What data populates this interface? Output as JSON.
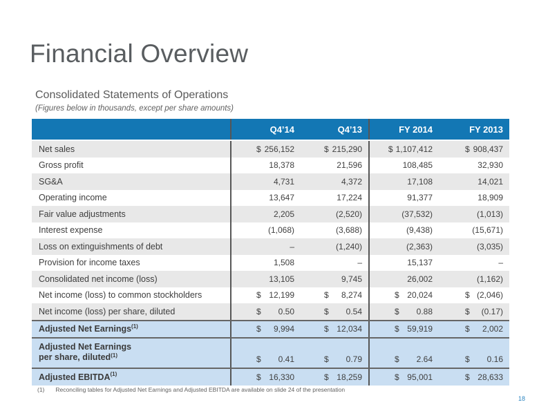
{
  "slide": {
    "title": "Financial Overview",
    "subtitle": "Consolidated Statements of Operations",
    "note": "(Figures below in thousands, except per share amounts)",
    "footnote_marker": "(1)",
    "footnote_text": "Reconciling tables for Adjusted Net Earnings and Adjusted EBITDA are available on slide 24 of the presentation",
    "page_number": "18"
  },
  "colors": {
    "header_blue": "#1377b4",
    "row_stripe_gray": "#e8e8e8",
    "highlight_light_blue": "#c9def2",
    "rule_dark_gray": "#565656",
    "page_number_blue": "#2e86c1",
    "title_gray": "#595d60"
  },
  "table": {
    "header": [
      "Q4’14",
      "Q4’13",
      "FY 2014",
      "FY 2013"
    ],
    "rows": [
      {
        "label": "Net sales",
        "cells": [
          {
            "d": "$",
            "v": "256,152"
          },
          {
            "d": "$",
            "v": "215,290"
          },
          {
            "d": "$",
            "v": "1,107,412"
          },
          {
            "d": "$",
            "v": "908,437"
          }
        ]
      },
      {
        "label": "Gross profit",
        "cells": [
          {
            "d": "",
            "v": "18,378"
          },
          {
            "d": "",
            "v": "21,596"
          },
          {
            "d": "",
            "v": "108,485"
          },
          {
            "d": "",
            "v": "32,930"
          }
        ]
      },
      {
        "label": "SG&A",
        "cells": [
          {
            "d": "",
            "v": "4,731"
          },
          {
            "d": "",
            "v": "4,372"
          },
          {
            "d": "",
            "v": "17,108"
          },
          {
            "d": "",
            "v": "14,021"
          }
        ]
      },
      {
        "label": "Operating income",
        "cells": [
          {
            "d": "",
            "v": "13,647"
          },
          {
            "d": "",
            "v": "17,224"
          },
          {
            "d": "",
            "v": "91,377"
          },
          {
            "d": "",
            "v": "18,909"
          }
        ]
      },
      {
        "label": "Fair value adjustments",
        "cells": [
          {
            "d": "",
            "v": "2,205"
          },
          {
            "d": "",
            "v": "(2,520)"
          },
          {
            "d": "",
            "v": "(37,532)"
          },
          {
            "d": "",
            "v": "(1,013)"
          }
        ]
      },
      {
        "label": "Interest expense",
        "cells": [
          {
            "d": "",
            "v": "(1,068)"
          },
          {
            "d": "",
            "v": "(3,688)"
          },
          {
            "d": "",
            "v": "(9,438)"
          },
          {
            "d": "",
            "v": "(15,671)"
          }
        ]
      },
      {
        "label": "Loss on extinguishments of debt",
        "cells": [
          {
            "d": "",
            "v": "–"
          },
          {
            "d": "",
            "v": "(1,240)"
          },
          {
            "d": "",
            "v": "(2,363)"
          },
          {
            "d": "",
            "v": "(3,035)"
          }
        ]
      },
      {
        "label": "Provision for income taxes",
        "cells": [
          {
            "d": "",
            "v": "1,508"
          },
          {
            "d": "",
            "v": "–"
          },
          {
            "d": "",
            "v": "15,137"
          },
          {
            "d": "",
            "v": "–"
          }
        ]
      },
      {
        "label": "Consolidated net  income (loss)",
        "cells": [
          {
            "d": "",
            "v": "13,105"
          },
          {
            "d": "",
            "v": "9,745"
          },
          {
            "d": "",
            "v": "26,002"
          },
          {
            "d": "",
            "v": "(1,162)"
          }
        ]
      },
      {
        "label": "Net income (loss) to common stockholders",
        "cells": [
          {
            "d": "$",
            "v": "12,199"
          },
          {
            "d": "$",
            "v": "8,274"
          },
          {
            "d": "$",
            "v": "20,024"
          },
          {
            "d": "$",
            "v": "(2,046)"
          }
        ]
      },
      {
        "label": "Net income (loss) per share, diluted",
        "cells": [
          {
            "d": "$",
            "v": "0.50"
          },
          {
            "d": "$",
            "v": "0.54"
          },
          {
            "d": "$",
            "v": "0.88"
          },
          {
            "d": "$",
            "v": "(0.17)"
          }
        ]
      },
      {
        "label": "Adjusted Net Earnings",
        "sup": "(1)",
        "cells": [
          {
            "d": "$",
            "v": "9,994"
          },
          {
            "d": "$",
            "v": "12,034"
          },
          {
            "d": "$",
            "v": "59,919"
          },
          {
            "d": "$",
            "v": "2,002"
          }
        ]
      },
      {
        "label_line1": "Adjusted Net Earnings",
        "label_line2": "per share, diluted",
        "sup": "(1)",
        "cells": [
          {
            "d": "$",
            "v": "0.41"
          },
          {
            "d": "$",
            "v": "0.79"
          },
          {
            "d": "$",
            "v": "2.64"
          },
          {
            "d": "$",
            "v": "0.16"
          }
        ]
      },
      {
        "label": "Adjusted EBITDA",
        "sup": "(1)",
        "cells": [
          {
            "d": "$",
            "v": "16,330"
          },
          {
            "d": "$",
            "v": "18,259"
          },
          {
            "d": "$",
            "v": "95,001"
          },
          {
            "d": "$",
            "v": "28,633"
          }
        ]
      }
    ]
  }
}
